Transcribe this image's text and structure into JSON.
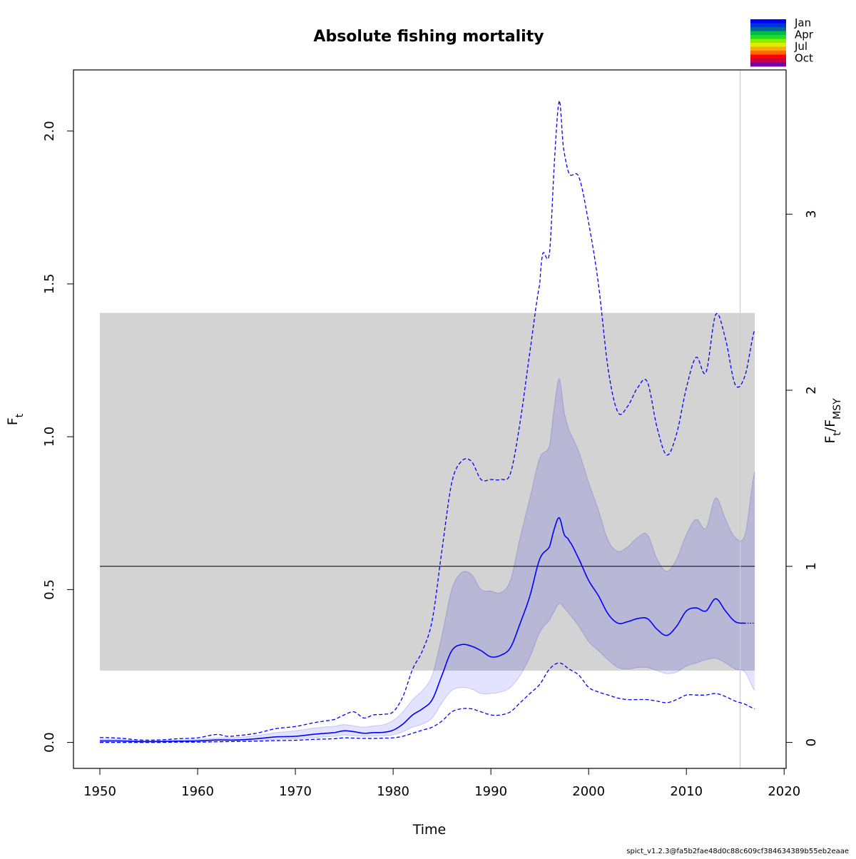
{
  "chart_data": {
    "type": "line",
    "title": "Absolute fishing mortality",
    "xlabel": "Time",
    "ylabel": "F",
    "ylabel_sub": "t",
    "ylabel_right": "F",
    "ylabel_right_sub": "t",
    "ylabel_right_sep": "/F",
    "ylabel_right_sub2": "MSY",
    "xlim": [
      1947.3,
      2020.2
    ],
    "ylim": [
      -0.085,
      2.2
    ],
    "x_ticks": [
      1950,
      1960,
      1970,
      1980,
      1990,
      2000,
      2010,
      2020
    ],
    "y_ticks": [
      0.0,
      0.5,
      1.0,
      1.5,
      2.0
    ],
    "y_tick_labels": [
      "0.0",
      "0.5",
      "1.0",
      "1.5",
      "2.0"
    ],
    "right_ticks": [
      0,
      1,
      2,
      3
    ],
    "right_ticks_labels": [
      "0",
      "1",
      "2",
      "3"
    ],
    "fmsy": 0.576,
    "fmsy_band": {
      "x": [
        1950,
        2017
      ],
      "y": [
        0.235,
        1.405
      ]
    },
    "last_obs_year": 2015.5,
    "colors": {
      "estimate": "#0000ff",
      "ci_fill": "rgba(0,0,255,0.11)",
      "ci_fill_over": "#b8b8d6",
      "band": "#d3d3d3",
      "fmsy_line": "#000000",
      "obs_line": "#cccccc"
    },
    "series": [
      {
        "role": "estimate",
        "x": [
          1950,
          1952,
          1954,
          1956,
          1958,
          1960,
          1962,
          1964,
          1966,
          1968,
          1970,
          1972,
          1974,
          1975,
          1976,
          1977,
          1978,
          1979,
          1980,
          1981,
          1982,
          1983,
          1984,
          1985,
          1986,
          1987,
          1988,
          1989,
          1990,
          1991,
          1992,
          1993,
          1994,
          1995,
          1996,
          1996.5,
          1997,
          1997.5,
          1998,
          1999,
          2000,
          2001,
          2002,
          2003,
          2004,
          2005,
          2006,
          2007,
          2008,
          2009,
          2010,
          2011,
          2012,
          2013,
          2014,
          2015,
          2016
        ],
        "y": [
          0.005,
          0.005,
          0.003,
          0.003,
          0.004,
          0.005,
          0.008,
          0.008,
          0.012,
          0.018,
          0.02,
          0.027,
          0.032,
          0.038,
          0.035,
          0.03,
          0.032,
          0.033,
          0.04,
          0.06,
          0.09,
          0.11,
          0.14,
          0.22,
          0.3,
          0.32,
          0.315,
          0.3,
          0.28,
          0.285,
          0.31,
          0.39,
          0.48,
          0.6,
          0.64,
          0.7,
          0.735,
          0.68,
          0.66,
          0.6,
          0.53,
          0.48,
          0.42,
          0.39,
          0.395,
          0.405,
          0.405,
          0.37,
          0.35,
          0.38,
          0.43,
          0.44,
          0.43,
          0.47,
          0.43,
          0.395,
          0.39
        ]
      },
      {
        "role": "estimate_forecast",
        "x": [
          2016,
          2017
        ],
        "y": [
          0.39,
          0.39
        ]
      },
      {
        "role": "ci_upper",
        "x": [
          1950,
          1952,
          1954,
          1956,
          1958,
          1960,
          1962,
          1964,
          1966,
          1968,
          1970,
          1972,
          1974,
          1975,
          1976,
          1977,
          1978,
          1979,
          1980,
          1981,
          1982,
          1983,
          1984,
          1985,
          1986,
          1987,
          1988,
          1989,
          1990,
          1991,
          1992,
          1993,
          1994,
          1995,
          1996,
          1996.5,
          1997,
          1997.5,
          1998,
          1999,
          2000,
          2001,
          2002,
          2003,
          2004,
          2005,
          2006,
          2007,
          2008,
          2009,
          2010,
          2011,
          2012,
          2013,
          2014,
          2015,
          2016,
          2017
        ],
        "y": [
          0.01,
          0.01,
          0.006,
          0.006,
          0.008,
          0.01,
          0.014,
          0.016,
          0.022,
          0.032,
          0.038,
          0.047,
          0.053,
          0.058,
          0.054,
          0.05,
          0.054,
          0.058,
          0.072,
          0.1,
          0.14,
          0.17,
          0.22,
          0.35,
          0.5,
          0.555,
          0.55,
          0.5,
          0.495,
          0.49,
          0.53,
          0.67,
          0.8,
          0.93,
          0.97,
          1.1,
          1.19,
          1.08,
          1.02,
          0.95,
          0.85,
          0.76,
          0.66,
          0.625,
          0.64,
          0.67,
          0.68,
          0.6,
          0.56,
          0.6,
          0.68,
          0.73,
          0.7,
          0.8,
          0.73,
          0.67,
          0.68,
          0.885
        ]
      },
      {
        "role": "ci_lower",
        "x": [
          1950,
          1952,
          1954,
          1956,
          1958,
          1960,
          1962,
          1964,
          1966,
          1968,
          1970,
          1972,
          1974,
          1975,
          1976,
          1977,
          1978,
          1979,
          1980,
          1981,
          1982,
          1983,
          1984,
          1985,
          1986,
          1987,
          1988,
          1989,
          1990,
          1991,
          1992,
          1993,
          1994,
          1995,
          1996,
          1996.5,
          1997,
          1997.5,
          1998,
          1999,
          2000,
          2001,
          2002,
          2003,
          2004,
          2005,
          2006,
          2007,
          2008,
          2009,
          2010,
          2011,
          2012,
          2013,
          2014,
          2015,
          2016,
          2017
        ],
        "y": [
          0.002,
          0.002,
          0.001,
          0.001,
          0.002,
          0.003,
          0.004,
          0.005,
          0.007,
          0.01,
          0.012,
          0.016,
          0.02,
          0.024,
          0.022,
          0.02,
          0.021,
          0.022,
          0.025,
          0.035,
          0.05,
          0.06,
          0.08,
          0.13,
          0.17,
          0.18,
          0.175,
          0.16,
          0.16,
          0.165,
          0.18,
          0.22,
          0.28,
          0.36,
          0.4,
          0.43,
          0.455,
          0.44,
          0.42,
          0.38,
          0.33,
          0.3,
          0.27,
          0.245,
          0.24,
          0.245,
          0.245,
          0.235,
          0.225,
          0.23,
          0.25,
          0.26,
          0.27,
          0.275,
          0.26,
          0.24,
          0.23,
          0.17
        ]
      },
      {
        "role": "outer_upper",
        "x": [
          1950,
          1952,
          1954,
          1956,
          1958,
          1960,
          1962,
          1963,
          1964,
          1966,
          1968,
          1970,
          1972,
          1974,
          1975,
          1976,
          1977,
          1978,
          1979,
          1980,
          1981,
          1982,
          1983,
          1984,
          1985,
          1986,
          1987,
          1988,
          1989,
          1990,
          1991,
          1992,
          1993,
          1994,
          1995,
          1995.3,
          1996,
          1996.5,
          1997,
          1997.4,
          1998,
          1999,
          2000,
          2001,
          2002,
          2003,
          2004,
          2005,
          2006,
          2007,
          2008,
          2009,
          2010,
          2011,
          2012,
          2013,
          2014,
          2015,
          2016,
          2017
        ],
        "y": [
          0.016,
          0.014,
          0.008,
          0.008,
          0.012,
          0.015,
          0.026,
          0.02,
          0.022,
          0.03,
          0.045,
          0.052,
          0.065,
          0.075,
          0.09,
          0.1,
          0.08,
          0.09,
          0.092,
          0.1,
          0.15,
          0.24,
          0.3,
          0.4,
          0.63,
          0.85,
          0.92,
          0.92,
          0.86,
          0.86,
          0.86,
          0.88,
          1.05,
          1.28,
          1.5,
          1.6,
          1.6,
          1.9,
          2.1,
          1.95,
          1.86,
          1.85,
          1.7,
          1.5,
          1.22,
          1.08,
          1.1,
          1.16,
          1.18,
          1.03,
          0.94,
          1.01,
          1.16,
          1.26,
          1.21,
          1.4,
          1.32,
          1.17,
          1.2,
          1.35
        ]
      },
      {
        "role": "outer_lower",
        "x": [
          1950,
          1952,
          1954,
          1956,
          1958,
          1960,
          1962,
          1964,
          1966,
          1968,
          1970,
          1972,
          1974,
          1975,
          1976,
          1977,
          1978,
          1979,
          1980,
          1981,
          1982,
          1983,
          1984,
          1985,
          1986,
          1987,
          1988,
          1989,
          1990,
          1991,
          1992,
          1993,
          1994,
          1995,
          1996,
          1997,
          1998,
          1999,
          2000,
          2001,
          2002,
          2003,
          2004,
          2005,
          2006,
          2007,
          2008,
          2009,
          2010,
          2011,
          2012,
          2013,
          2014,
          2015,
          2016,
          2017
        ],
        "y": [
          0.0,
          0.0,
          0.0,
          0.0,
          0.001,
          0.001,
          0.002,
          0.003,
          0.004,
          0.006,
          0.007,
          0.01,
          0.012,
          0.015,
          0.014,
          0.013,
          0.013,
          0.014,
          0.015,
          0.02,
          0.03,
          0.04,
          0.05,
          0.07,
          0.1,
          0.11,
          0.11,
          0.1,
          0.09,
          0.09,
          0.1,
          0.13,
          0.16,
          0.19,
          0.24,
          0.26,
          0.24,
          0.22,
          0.18,
          0.165,
          0.155,
          0.145,
          0.14,
          0.14,
          0.14,
          0.135,
          0.13,
          0.14,
          0.155,
          0.155,
          0.155,
          0.16,
          0.15,
          0.135,
          0.125,
          0.11
        ]
      }
    ]
  },
  "legend": {
    "items": [
      {
        "label": "Jan",
        "color": "#0000ff"
      },
      {
        "label": "",
        "color": "#0033dd"
      },
      {
        "label": "",
        "color": "#006699"
      },
      {
        "label": "Apr",
        "color": "#00bb44"
      },
      {
        "label": "",
        "color": "#22dd22"
      },
      {
        "label": "",
        "color": "#88ee00"
      },
      {
        "label": "Jul",
        "color": "#ddee00"
      },
      {
        "label": "",
        "color": "#ffaa00"
      },
      {
        "label": "",
        "color": "#ff6600"
      },
      {
        "label": "Oct",
        "color": "#ff0000"
      },
      {
        "label": "",
        "color": "#cc0044"
      },
      {
        "label": "",
        "color": "#7700aa"
      }
    ]
  },
  "footer": {
    "text": "spict_v1.2.3@fa5b2fae48d0c88c609cf384634389b55eb2eaae"
  }
}
